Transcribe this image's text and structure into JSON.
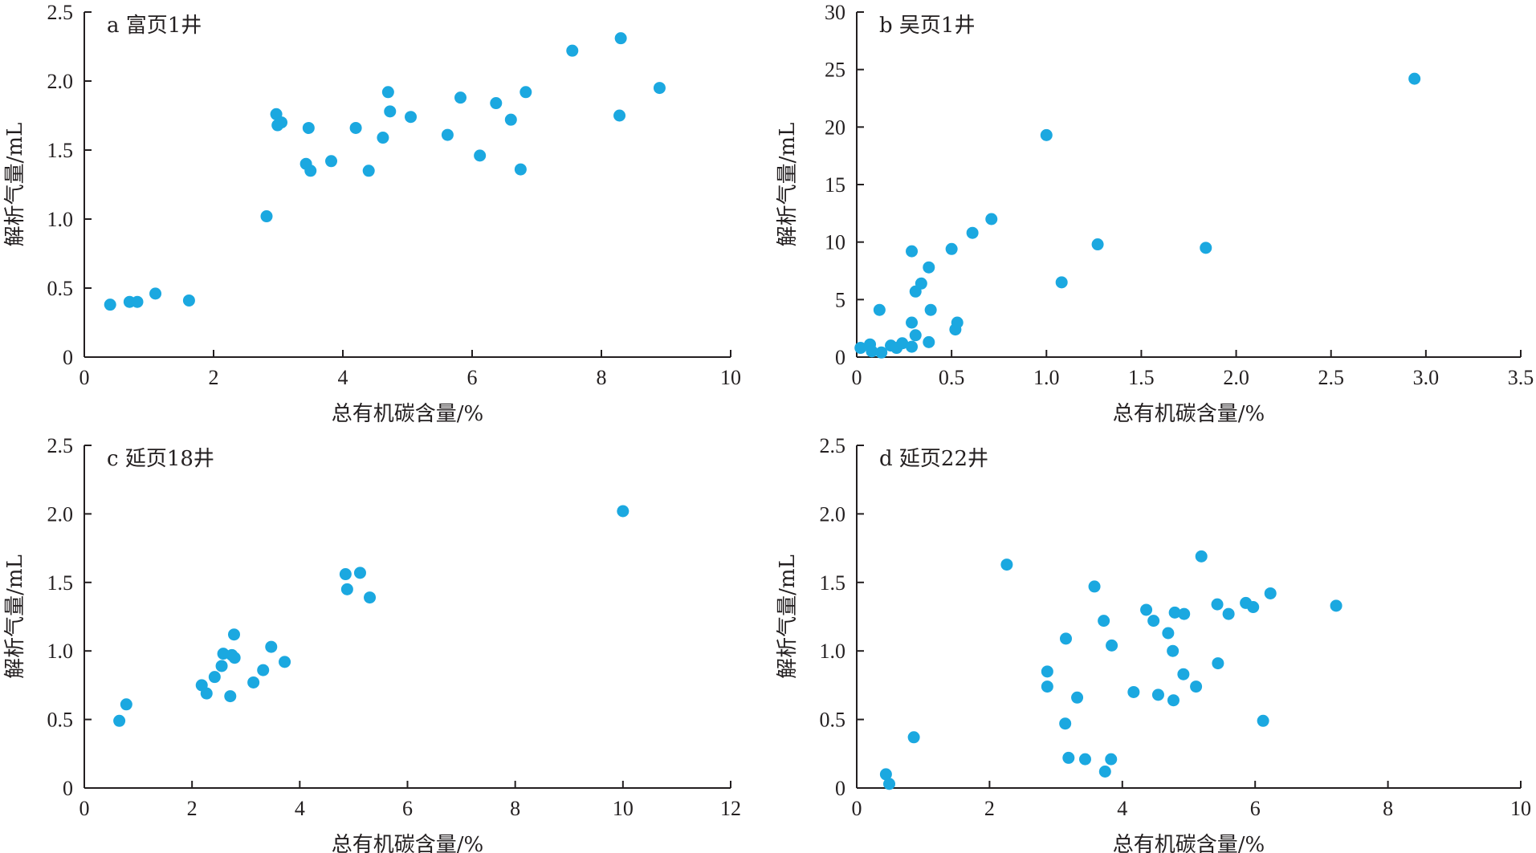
{
  "marker_color": "#1ba8e0",
  "axis_color": "#231f20",
  "chart_data": [
    {
      "type": "scatter",
      "title": "a 富页1井",
      "xlabel": "总有机碳含量/%",
      "ylabel": "解析气量/mL",
      "xlim": [
        0,
        10
      ],
      "ylim": [
        0,
        2.5
      ],
      "xticks": [
        0,
        2,
        4,
        6,
        8,
        10
      ],
      "yticks": [
        0,
        0.5,
        1.0,
        1.5,
        2.0,
        2.5
      ],
      "xtick_labels": [
        "0",
        "2",
        "4",
        "6",
        "8",
        "10"
      ],
      "ytick_labels": [
        "0",
        "0.5",
        "1.0",
        "1.5",
        "2.0",
        "2.5"
      ],
      "grid": false,
      "series": [
        {
          "x": [
            0.4,
            0.7,
            0.82,
            1.1,
            1.62,
            2.82,
            2.97,
            2.99,
            3.05,
            3.43,
            3.47,
            3.5,
            3.82,
            4.2,
            4.4,
            4.62,
            4.7,
            4.73,
            5.05,
            5.62,
            5.82,
            6.12,
            6.37,
            6.6,
            6.75,
            6.83,
            7.55,
            8.28,
            8.3,
            8.9
          ],
          "y": [
            0.38,
            0.4,
            0.4,
            0.46,
            0.41,
            1.02,
            1.76,
            1.68,
            1.7,
            1.4,
            1.66,
            1.35,
            1.42,
            1.66,
            1.35,
            1.59,
            1.92,
            1.78,
            1.74,
            1.61,
            1.88,
            1.46,
            1.84,
            1.72,
            1.36,
            1.92,
            2.22,
            1.75,
            2.31,
            1.95
          ]
        }
      ]
    },
    {
      "type": "scatter",
      "title": "b 吴页1井",
      "xlabel": "总有机碳含量/%",
      "ylabel": "解析气量/mL",
      "xlim": [
        0,
        3.5
      ],
      "ylim": [
        0,
        30
      ],
      "xticks": [
        0,
        0.5,
        1.0,
        1.5,
        2.0,
        2.5,
        3.0,
        3.5
      ],
      "yticks": [
        0,
        5,
        10,
        15,
        20,
        25,
        30
      ],
      "xtick_labels": [
        "0",
        "0.5",
        "1.0",
        "1.5",
        "2.0",
        "2.5",
        "3.0",
        "3.5"
      ],
      "ytick_labels": [
        "0",
        "5",
        "10",
        "15",
        "20",
        "25",
        "30"
      ],
      "grid": false,
      "series": [
        {
          "x": [
            0.02,
            0.07,
            0.08,
            0.12,
            0.13,
            0.18,
            0.21,
            0.24,
            0.29,
            0.29,
            0.29,
            0.31,
            0.31,
            0.34,
            0.38,
            0.38,
            0.39,
            0.5,
            0.52,
            0.53,
            0.61,
            0.71,
            1.0,
            1.08,
            1.27,
            1.84,
            2.94
          ],
          "y": [
            0.8,
            1.1,
            0.5,
            4.1,
            0.4,
            1.0,
            0.8,
            1.2,
            9.2,
            3.0,
            0.9,
            5.7,
            1.9,
            6.4,
            7.8,
            1.3,
            4.1,
            9.4,
            2.4,
            3.0,
            10.8,
            12.0,
            19.3,
            6.5,
            9.8,
            9.5,
            24.2
          ]
        }
      ]
    },
    {
      "type": "scatter",
      "title": "c 延页18井",
      "xlabel": "总有机碳含量/%",
      "ylabel": "解析气量/mL",
      "xlim": [
        0,
        12
      ],
      "ylim": [
        0,
        2.5
      ],
      "xticks": [
        0,
        2,
        4,
        6,
        8,
        10,
        12
      ],
      "yticks": [
        0,
        0.5,
        1.0,
        1.5,
        2.0,
        2.5
      ],
      "xtick_labels": [
        "0",
        "2",
        "4",
        "6",
        "8",
        "10",
        "12"
      ],
      "ytick_labels": [
        "0",
        "0.5",
        "1.0",
        "1.5",
        "2.0",
        "2.5"
      ],
      "grid": false,
      "series": [
        {
          "x": [
            0.65,
            0.78,
            2.18,
            2.27,
            2.42,
            2.55,
            2.58,
            2.71,
            2.74,
            2.78,
            2.79,
            3.14,
            3.32,
            3.47,
            3.72,
            4.85,
            4.88,
            5.12,
            5.3,
            10.0
          ],
          "y": [
            0.49,
            0.61,
            0.75,
            0.69,
            0.81,
            0.89,
            0.98,
            0.67,
            0.97,
            1.12,
            0.95,
            0.77,
            0.86,
            1.03,
            0.92,
            1.56,
            1.45,
            1.57,
            1.39,
            2.02
          ]
        }
      ]
    },
    {
      "type": "scatter",
      "title": "d 延页22井",
      "xlabel": "总有机碳含量/%",
      "ylabel": "解析气量/mL",
      "xlim": [
        0,
        10
      ],
      "ylim": [
        0,
        2.5
      ],
      "xticks": [
        0,
        2,
        4,
        6,
        8,
        10
      ],
      "yticks": [
        0,
        0.5,
        1.0,
        1.5,
        2.0,
        2.5
      ],
      "xtick_labels": [
        "0",
        "2",
        "4",
        "6",
        "8",
        "10"
      ],
      "ytick_labels": [
        "0",
        "0.5",
        "1.0",
        "1.5",
        "2.0",
        "2.5"
      ],
      "grid": false,
      "series": [
        {
          "x": [
            0.44,
            0.49,
            0.86,
            2.26,
            2.87,
            2.87,
            3.14,
            3.15,
            3.19,
            3.32,
            3.44,
            3.58,
            3.72,
            3.74,
            3.83,
            3.84,
            4.17,
            4.36,
            4.47,
            4.54,
            4.69,
            4.76,
            4.77,
            4.79,
            4.92,
            4.93,
            5.11,
            5.19,
            5.43,
            5.44,
            5.6,
            5.86,
            5.97,
            6.12,
            6.23,
            7.22
          ],
          "y": [
            0.1,
            0.03,
            0.37,
            1.63,
            0.85,
            0.74,
            0.47,
            1.09,
            0.22,
            0.66,
            0.21,
            1.47,
            1.22,
            0.12,
            0.21,
            1.04,
            0.7,
            1.3,
            1.22,
            0.68,
            1.13,
            1.0,
            0.64,
            1.28,
            0.83,
            1.27,
            0.74,
            1.69,
            1.34,
            0.91,
            1.27,
            1.35,
            1.32,
            0.49,
            1.42,
            1.33
          ]
        }
      ]
    }
  ]
}
